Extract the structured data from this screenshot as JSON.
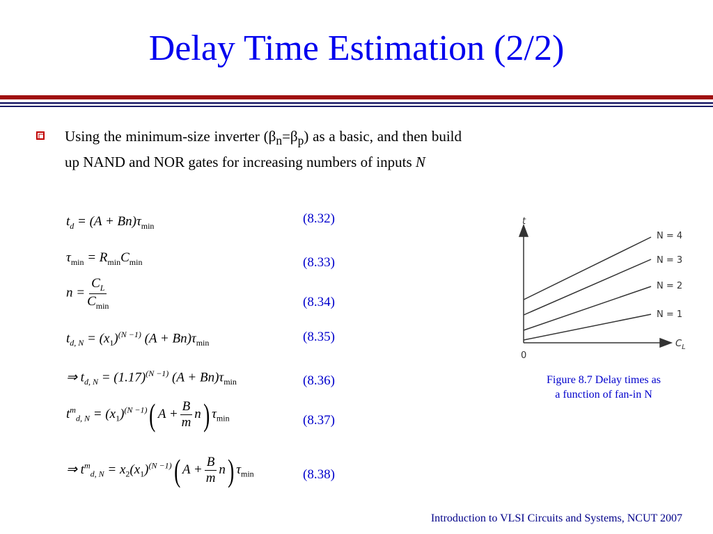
{
  "header": {
    "title": "Delay Time Estimation (2/2)"
  },
  "bullet": {
    "parts": [
      "Using the minimum-size inverter (β",
      "n",
      "=β",
      "p",
      ") as a basic, and then build up NAND and NOR gates for increasing numbers of inputs ",
      "N"
    ]
  },
  "equations": [
    {
      "parts": [
        "t",
        "d",
        "= (A + Bn)τ",
        "min"
      ],
      "number": "(8.32)"
    },
    {
      "parts": [
        "τ",
        "min",
        "= R",
        "min",
        "C",
        "min"
      ],
      "number": "(8.33)"
    },
    {
      "parts": [
        "n =",
        "C",
        "L",
        "C",
        "min"
      ],
      "number": "(8.34)"
    },
    {
      "parts": [
        "t",
        "d, N",
        "= (x",
        "1",
        ")",
        "(N −1)",
        "(A + Bn)τ",
        "min"
      ],
      "number": "(8.35)"
    },
    {
      "parts": [
        "⇒ t",
        "d, N",
        "= (1.17)",
        "(N −1)",
        "(A + Bn)τ",
        "min"
      ],
      "number": "(8.36)"
    },
    {
      "parts": [
        "t",
        "m",
        "d, N",
        "= (x",
        "1",
        ")",
        "(N −1)",
        "A +",
        "B",
        "m",
        "n",
        "τ",
        "min"
      ],
      "number": "(8.37)"
    },
    {
      "parts": [
        "⇒ t",
        "m",
        "d, N",
        "= x",
        "2",
        "(x",
        "1",
        ")",
        "(N −1)",
        "A +",
        "B",
        "m",
        "n",
        "τ",
        "min"
      ],
      "number": "(8.38)"
    }
  ],
  "figure": {
    "y_axis": "t",
    "x_axis": [
      "C",
      "L"
    ],
    "origin": "0",
    "lines": [
      "N = 4",
      "N = 3",
      "N = 2",
      "N = 1"
    ],
    "caption": [
      "Figure 8.7 Delay times as",
      "a function of fan-in N"
    ]
  },
  "footer": "Introduction to VLSI Circuits and Systems, NCUT  2007"
}
